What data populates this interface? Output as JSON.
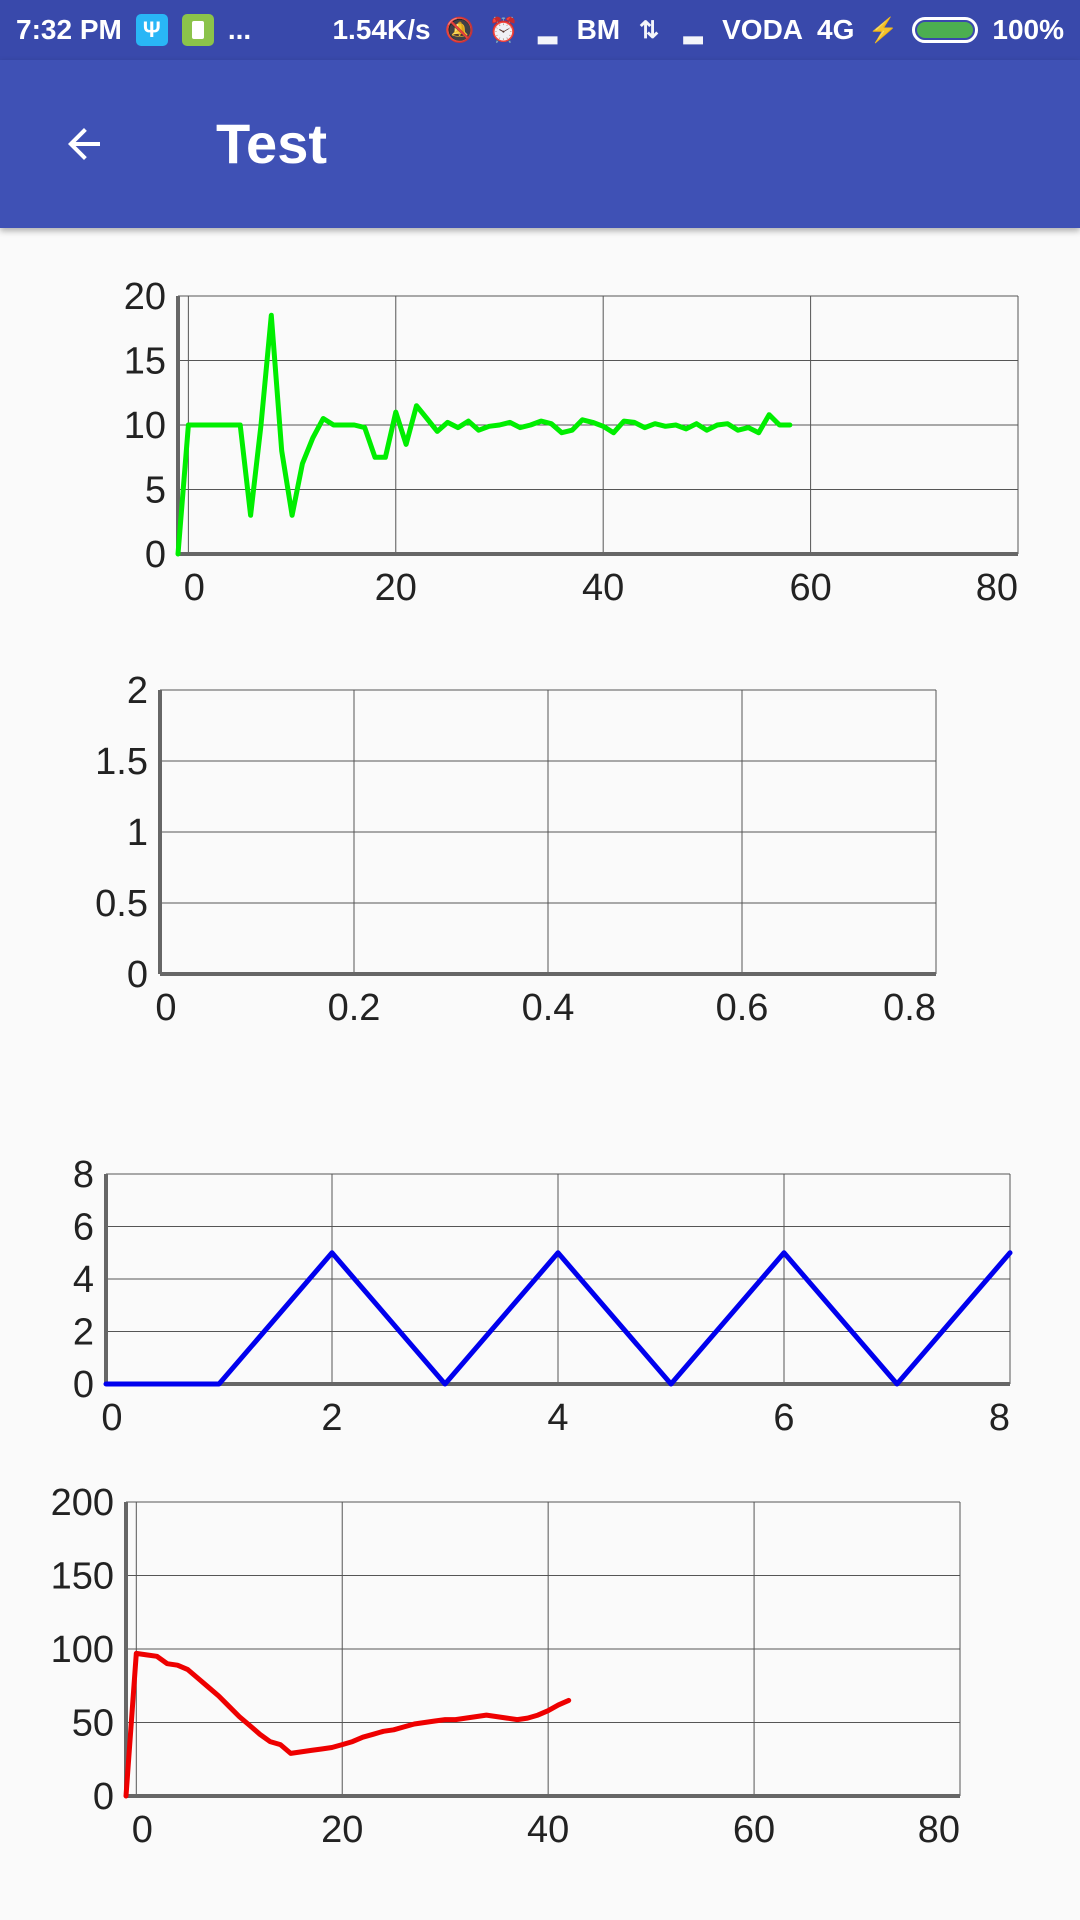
{
  "status_bar": {
    "time": "7:32 PM",
    "dots": "...",
    "net_speed": "1.54K/s",
    "carrier1": "BM",
    "carrier2": "VODA",
    "net_type": "4G",
    "battery_percent": "100%",
    "battery_level": 1.0
  },
  "app_bar": {
    "title": "Test",
    "back_icon": "arrow-left-icon"
  },
  "colors": {
    "status_bar": "#3949ab",
    "app_bar": "#3f51b5",
    "green": "#00ee00",
    "blue": "#0000ee",
    "red": "#ee0000"
  },
  "chart_data": [
    {
      "type": "line",
      "x_ticks": [
        "0",
        "20",
        "40",
        "60",
        "80"
      ],
      "y_ticks": [
        "0",
        "5",
        "10",
        "15",
        "20"
      ],
      "xlim": [
        -1,
        80
      ],
      "ylim": [
        0,
        20
      ],
      "grid": true,
      "series": [
        {
          "color": "#00ee00",
          "x": [
            -1,
            0,
            1,
            2,
            3,
            4,
            5,
            6,
            7,
            8,
            9,
            10,
            11,
            12,
            13,
            14,
            15,
            16,
            17,
            18,
            19,
            20,
            21,
            22,
            23,
            24,
            25,
            26,
            27,
            28,
            29,
            30,
            31,
            32,
            33,
            34,
            35,
            36,
            37,
            38,
            39,
            40,
            41,
            42,
            43,
            44,
            45,
            46,
            47,
            48,
            49,
            50,
            51,
            52,
            53,
            54,
            55,
            56,
            57,
            58
          ],
          "y": [
            0,
            10,
            10,
            10,
            10,
            10,
            10,
            3,
            10,
            18.5,
            8,
            3,
            7,
            9,
            10.5,
            10,
            10,
            10,
            9.8,
            7.5,
            7.5,
            11,
            8.5,
            11.5,
            10.5,
            9.5,
            10.2,
            9.8,
            10.3,
            9.6,
            9.9,
            10,
            10.2,
            9.8,
            10,
            10.3,
            10.1,
            9.4,
            9.6,
            10.4,
            10.2,
            9.9,
            9.4,
            10.3,
            10.2,
            9.8,
            10.1,
            9.9,
            10,
            9.7,
            10.1,
            9.6,
            10,
            10.1,
            9.6,
            9.8,
            9.4,
            10.8,
            10,
            10
          ]
        }
      ]
    },
    {
      "type": "line",
      "x_ticks": [
        "0",
        "0.2",
        "0.4",
        "0.6",
        "0.8"
      ],
      "y_ticks": [
        "0",
        "0.5",
        "1",
        "1.5",
        "2"
      ],
      "xlim": [
        0,
        0.8
      ],
      "ylim": [
        0,
        2
      ],
      "grid": true,
      "series": []
    },
    {
      "type": "line",
      "x_ticks": [
        "0",
        "2",
        "4",
        "6",
        "8"
      ],
      "y_ticks": [
        "0",
        "2",
        "4",
        "6",
        "8"
      ],
      "xlim": [
        0,
        8
      ],
      "ylim": [
        0,
        8
      ],
      "grid": true,
      "series": [
        {
          "color": "#0000ee",
          "x": [
            0,
            1,
            2,
            3,
            4,
            5,
            6,
            7,
            8
          ],
          "y": [
            0,
            0,
            5,
            0,
            5,
            0,
            5,
            0,
            5
          ]
        }
      ]
    },
    {
      "type": "line",
      "x_ticks": [
        "0",
        "20",
        "40",
        "60",
        "80"
      ],
      "y_ticks": [
        "0",
        "50",
        "100",
        "150",
        "200"
      ],
      "xlim": [
        -1,
        80
      ],
      "ylim": [
        0,
        200
      ],
      "grid": true,
      "series": [
        {
          "color": "#ee0000",
          "x": [
            -1,
            0,
            1,
            2,
            3,
            4,
            5,
            6,
            7,
            8,
            9,
            10,
            11,
            12,
            13,
            14,
            15,
            16,
            17,
            18,
            19,
            20,
            21,
            22,
            23,
            24,
            25,
            26,
            27,
            28,
            29,
            30,
            31,
            32,
            33,
            34,
            35,
            36,
            37,
            38,
            39,
            40,
            41,
            42
          ],
          "y": [
            0,
            97,
            96,
            95,
            90,
            89,
            86,
            80,
            74,
            68,
            61,
            54,
            48,
            42,
            37,
            35,
            29,
            30,
            31,
            32,
            33,
            35,
            37,
            40,
            42,
            44,
            45,
            47,
            49,
            50,
            51,
            52,
            52,
            53,
            54,
            55,
            54,
            53,
            52,
            53,
            55,
            58,
            62,
            65
          ]
        }
      ]
    }
  ]
}
